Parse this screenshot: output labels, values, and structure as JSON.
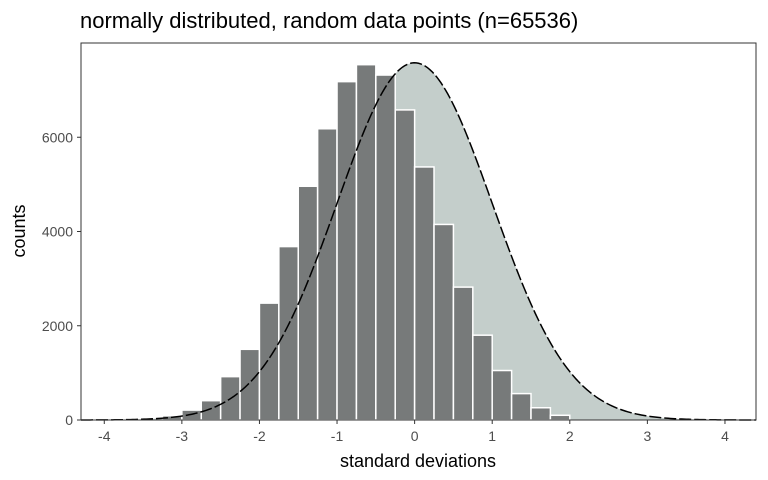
{
  "chart_data": {
    "type": "bar",
    "title": "normally distributed, random data points (n=65536)",
    "xlabel": "standard deviations",
    "ylabel": "counts",
    "xlim": [
      -4.3,
      4.4
    ],
    "ylim": [
      0,
      8000
    ],
    "xticks": [
      -4,
      -3,
      -2,
      -1,
      0,
      1,
      2,
      3,
      4
    ],
    "yticks": [
      0,
      2000,
      4000,
      6000
    ],
    "bin_width": 0.25,
    "bins": [
      {
        "x": -3.125,
        "count": 90
      },
      {
        "x": -2.875,
        "count": 210
      },
      {
        "x": -2.625,
        "count": 410
      },
      {
        "x": -2.375,
        "count": 920
      },
      {
        "x": -2.125,
        "count": 1500
      },
      {
        "x": -1.875,
        "count": 2480
      },
      {
        "x": -1.625,
        "count": 3680
      },
      {
        "x": -1.375,
        "count": 4960
      },
      {
        "x": -1.125,
        "count": 6180
      },
      {
        "x": -0.875,
        "count": 7180
      },
      {
        "x": -0.625,
        "count": 7540
      },
      {
        "x": -0.375,
        "count": 7320
      },
      {
        "x": -0.125,
        "count": 6580
      },
      {
        "x": 0.125,
        "count": 5370
      },
      {
        "x": 0.375,
        "count": 4150
      },
      {
        "x": 0.625,
        "count": 2820
      },
      {
        "x": 0.875,
        "count": 1800
      },
      {
        "x": 1.125,
        "count": 1050
      },
      {
        "x": 1.375,
        "count": 560
      },
      {
        "x": 1.625,
        "count": 260
      },
      {
        "x": 1.875,
        "count": 100
      }
    ],
    "curve": {
      "type": "normal-density",
      "mean": 0,
      "sd": 1,
      "peak": 7580
    },
    "grid": false,
    "legend": "none",
    "colors": {
      "bar_fill": "#777a7a",
      "bar_stroke": "#ffffff",
      "curve_fill": "#c4cecb",
      "curve_line": "#000000",
      "panel_border": "#333333",
      "tick_label": "#4d4d4d"
    }
  }
}
